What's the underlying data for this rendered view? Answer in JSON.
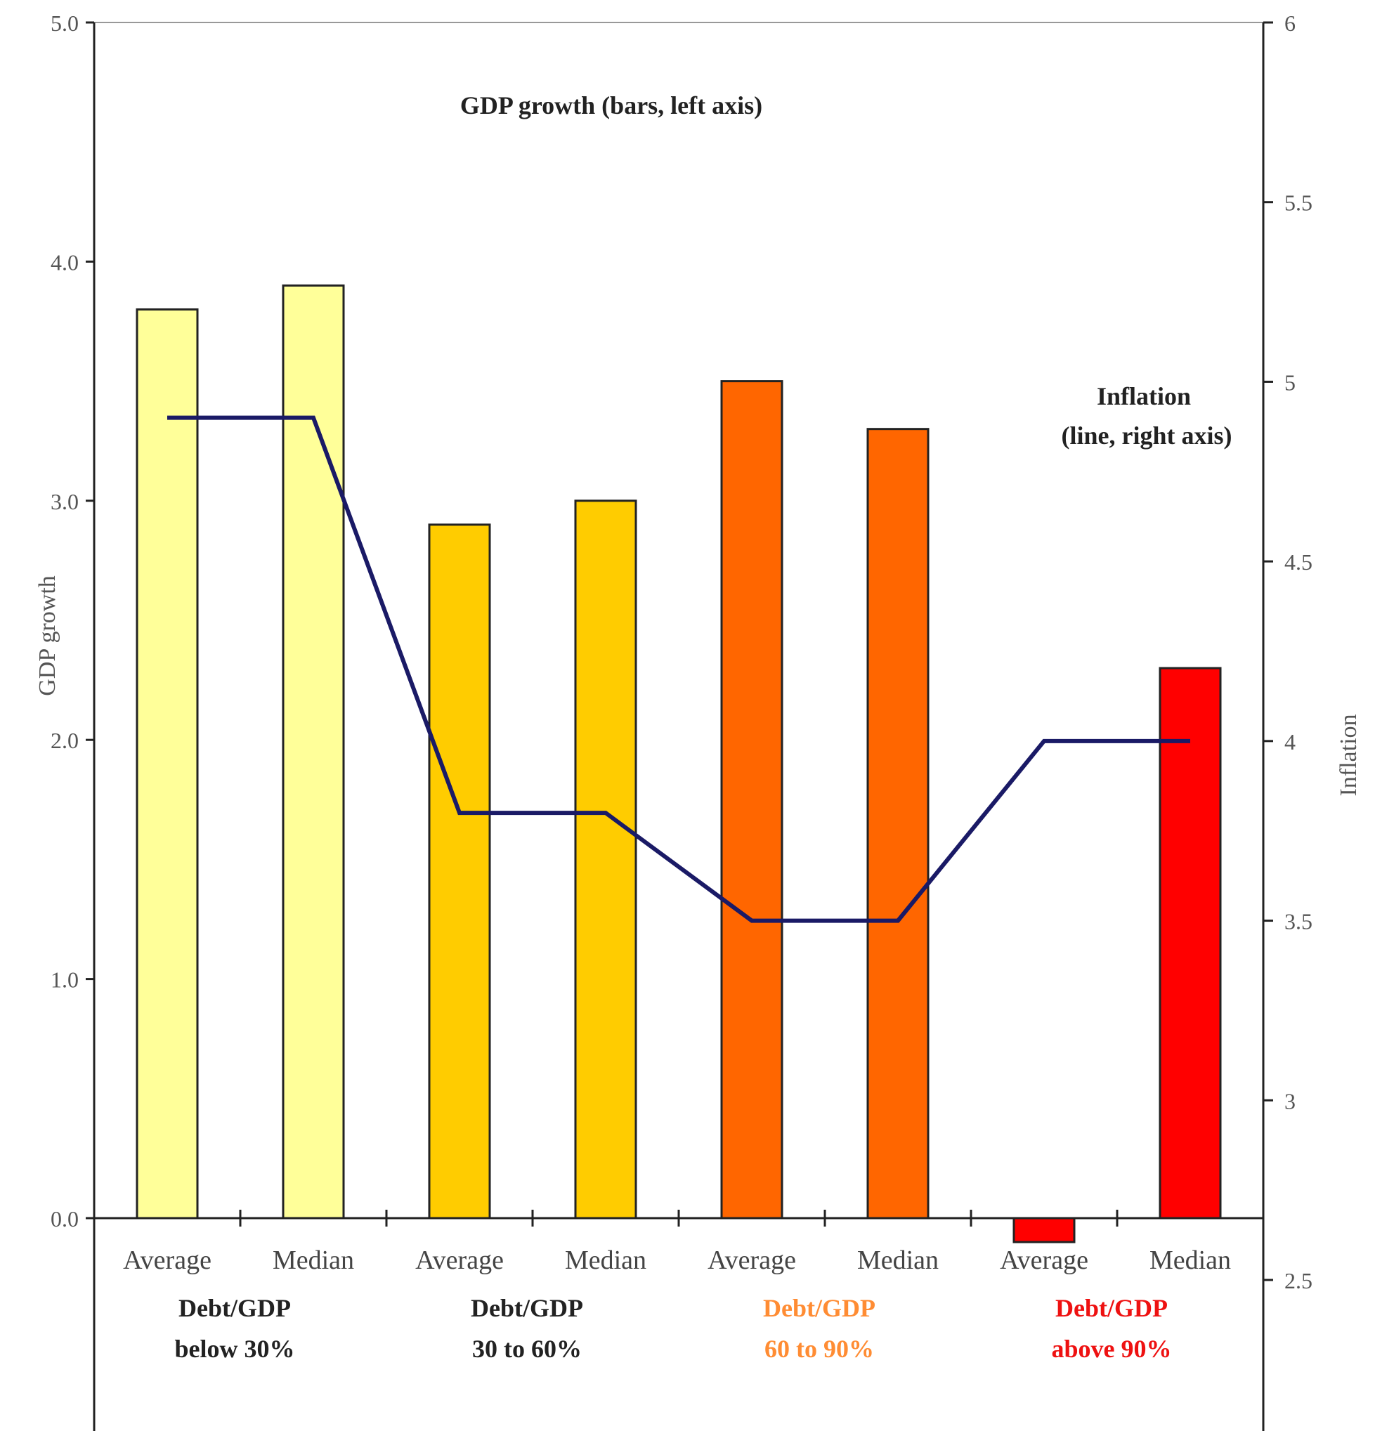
{
  "chart_data": {
    "type": "bar",
    "annotations": {
      "gdp": "GDP growth (bars, left axis)",
      "inflation_line1": "Inflation",
      "inflation_line2": "(line, right axis)"
    },
    "ylabel_left": "GDP growth",
    "ylabel_right": "Inflation",
    "ylim_left": [
      0,
      5.0
    ],
    "ylim_right": [
      2.5,
      6
    ],
    "yticks_left": [
      "0.0",
      "1.0",
      "2.0",
      "3.0",
      "4.0",
      "5.0"
    ],
    "yticks_right": [
      "2.5",
      "3",
      "3.5",
      "4",
      "4.5",
      "5",
      "5.5",
      "6"
    ],
    "categories": [
      "Average",
      "Median",
      "Average",
      "Median",
      "Average",
      "Median",
      "Average",
      "Median"
    ],
    "groups": [
      {
        "line1": "Debt/GDP",
        "line2": "below 30%",
        "color": "#222222"
      },
      {
        "line1": "Debt/GDP",
        "line2": "30 to 60%",
        "color": "#222222"
      },
      {
        "line1": "Debt/GDP",
        "line2": "60 to 90%",
        "color": "#ff8c33"
      },
      {
        "line1": "Debt/GDP",
        "line2": "above 90%",
        "color": "#ee1111"
      }
    ],
    "series": [
      {
        "name": "GDP growth",
        "kind": "bar",
        "axis": "left",
        "values": [
          3.8,
          3.9,
          2.9,
          3.0,
          3.5,
          3.3,
          -0.1,
          2.3
        ],
        "colors": [
          "#ffff99",
          "#ffff99",
          "#ffcc00",
          "#ffcc00",
          "#ff6600",
          "#ff6600",
          "#ff0000",
          "#ff0000"
        ]
      },
      {
        "name": "Inflation",
        "kind": "line",
        "axis": "right",
        "values": [
          4.9,
          4.9,
          3.8,
          3.8,
          3.5,
          3.5,
          4.0,
          4.0
        ],
        "color": "#1a1a66"
      }
    ],
    "grid": false
  }
}
